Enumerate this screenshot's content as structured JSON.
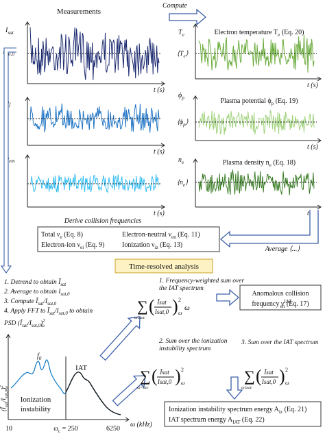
{
  "measurements": {
    "title": "Measurements",
    "panels": [
      {
        "y_label": [
          "I",
          {
            "sub": "sat"
          }
        ],
        "mean_label": [
          "I",
          {
            "sub": "sat,0"
          }
        ],
        "x_label": "t (s)"
      },
      {
        "y_label": [
          "ϕ",
          {
            "sub": "f"
          }
        ],
        "x_label": "t (s)"
      },
      {
        "y_label": [
          "ϕ",
          {
            "sub": "em"
          }
        ],
        "x_label": "t (s)"
      }
    ]
  },
  "compute_label": "Compute",
  "computed": {
    "panels": [
      {
        "y_label": [
          "T",
          {
            "sub": "e"
          }
        ],
        "title": [
          "Electron temperature T",
          {
            "sub": "e"
          },
          " (Eq. 20)"
        ],
        "mean_label": [
          "⟨T",
          {
            "sub": "e"
          },
          "⟩"
        ],
        "x_label": "t (s)"
      },
      {
        "y_label": [
          "ϕ",
          {
            "sub": "p"
          }
        ],
        "title": [
          "Plasma potential ϕ",
          {
            "sub": "p"
          },
          " (Eq. 19)"
        ],
        "mean_label": [
          "⟨ϕ",
          {
            "sub": "p"
          },
          "⟩"
        ],
        "x_label": "t (s)"
      },
      {
        "y_label": [
          "n",
          {
            "sub": "e"
          }
        ],
        "title": [
          "Plasma density n",
          {
            "sub": "e"
          },
          " (Eq. 18)"
        ],
        "mean_label": [
          "⟨n",
          {
            "sub": "e"
          },
          "⟩"
        ],
        "x_label": "t (s)"
      }
    ]
  },
  "average_label": "Average ⟨...⟩",
  "collision": {
    "heading": "Derive collision frequencies",
    "items": [
      [
        "Total ν",
        {
          "sub": "e"
        },
        " (Eq. 8)"
      ],
      [
        "Electron-ion ν",
        {
          "sub": "ei"
        },
        " (Eq. 9)"
      ],
      [
        "Electron-neutral ν",
        {
          "sub": "en"
        },
        " (Eq. 11)"
      ],
      [
        "Ionization ν",
        {
          "sub": "iz"
        },
        " (Eq. 13)"
      ]
    ]
  },
  "analysis_title": "Time-resolved analysis",
  "steps": [
    [
      "1. Detrend to obtain Ĩ",
      {
        "sub": "sat"
      }
    ],
    [
      "2. Average to obtain I",
      {
        "sub": "sat,0"
      }
    ],
    [
      "3. Compute Ĩ",
      {
        "sub": "sat"
      },
      "/I",
      {
        "sub": "sat,0"
      }
    ],
    [
      "4. Apply FFT to Ĩ",
      {
        "sub": "sat"
      },
      "/I",
      {
        "sub": "sat,0"
      },
      " to obtain"
    ],
    [
      "PSD (Ĩ",
      {
        "sub": "sat"
      },
      "/I",
      {
        "sub": "sat,0"
      },
      ")",
      {
        "sup": "2"
      },
      {
        "sub": "ω"
      }
    ]
  ],
  "sums": [
    {
      "heading": [
        "1. Frequency-weighted sum over",
        "the IAT spectrum"
      ],
      "formula": {
        "sum": "∑",
        "range": "ω≥ωc",
        "num": "Ĩsat",
        "den": "Isat,0",
        "power": "2",
        "sub": "ω",
        "tail": "ω"
      }
    },
    {
      "heading": [
        "2. Sum over the ionization",
        "instability spectrum"
      ],
      "formula": {
        "sum": "∑",
        "range": "ω<ωc",
        "num": "Ĩsat",
        "den": "Isat,0",
        "power": "2",
        "sub": "ω"
      }
    },
    {
      "heading": [
        "3. Sum over the IAT spectrum"
      ],
      "formula": {
        "sum": "∑",
        "range": "ω≥ωc",
        "num": "Ĩsat",
        "den": "Isat,0",
        "power": "2",
        "sub": "ω"
      }
    }
  ],
  "anomalous_box": [
    "Anomalous collision",
    [
      "frequency ν",
      {
        "sup": "IAT"
      },
      {
        "sub": "en"
      },
      " (Eq. 17)"
    ]
  ],
  "energy_box": [
    [
      "Ionization instability spectrum energy A",
      {
        "sub": "iz"
      },
      " (Eq. 21)"
    ],
    [
      "IAT spectrum energy A",
      {
        "sub": "IAT"
      },
      " (Eq. 22)"
    ]
  ],
  "spectrum": {
    "y_label": [
      "(Ĩ",
      {
        "sub": "sat"
      },
      "/I",
      {
        "sub": "sat,0"
      },
      ")",
      {
        "sup": "2"
      },
      {
        "sub": "ω"
      }
    ],
    "peak_label": [
      "f",
      {
        "sub": "0"
      }
    ],
    "iat_label": "IAT",
    "iz_label": [
      "Ionization",
      "instability"
    ],
    "x_ticks": [
      "10",
      [
        "ω",
        {
          "sub": "c"
        },
        " = 250"
      ],
      "6250"
    ],
    "x_label": "ω (kHz)"
  }
}
